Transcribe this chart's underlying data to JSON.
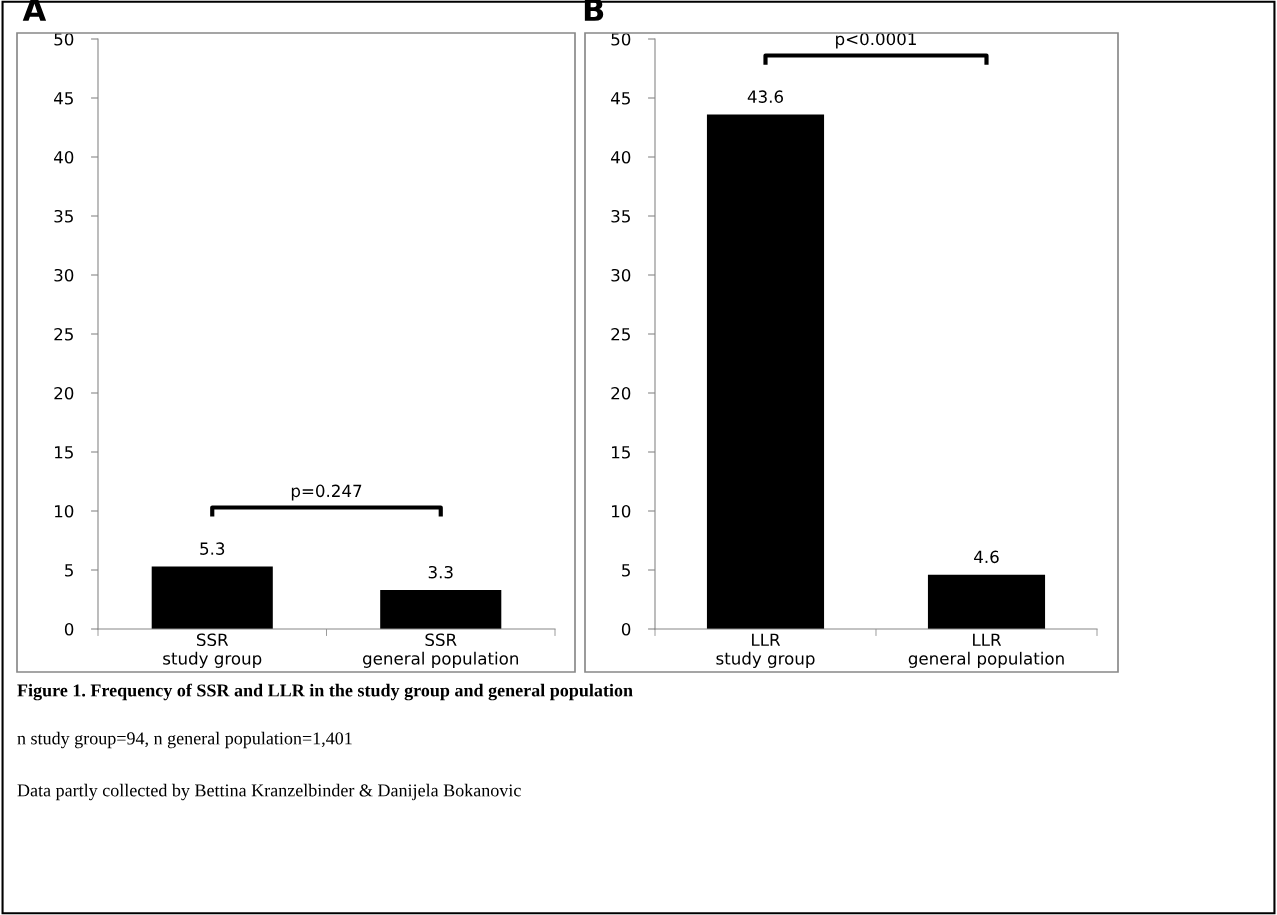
{
  "chart_data": [
    {
      "type": "bar",
      "title": "A",
      "categories": [
        "SSR\nstudy group",
        "SSR\ngeneral population"
      ],
      "values": [
        5.3,
        3.3
      ],
      "color": "#000000",
      "ylim": [
        0,
        50
      ],
      "yticks": [
        0,
        5,
        10,
        15,
        20,
        25,
        30,
        35,
        40,
        45,
        50
      ],
      "data_labels": true,
      "grid": false,
      "legend": false,
      "annotations": [
        "p=0.247"
      ]
    },
    {
      "type": "bar",
      "title": "B",
      "categories": [
        "LLR\nstudy group",
        "LLR\ngeneral population"
      ],
      "values": [
        43.6,
        4.6
      ],
      "color": "#000000",
      "ylim": [
        0,
        50
      ],
      "yticks": [
        0,
        5,
        10,
        15,
        20,
        25,
        30,
        35,
        40,
        45,
        50
      ],
      "data_labels": true,
      "grid": false,
      "legend": false,
      "annotations": [
        "p<0.0001",
        "Figure 1. Frequency of SSR and LLR in the study group and general population",
        "n study group=94, n general population=1,401",
        "Data partly collected by Bettina Kranzelbinder & Danijela Bokanovic"
      ]
    }
  ]
}
